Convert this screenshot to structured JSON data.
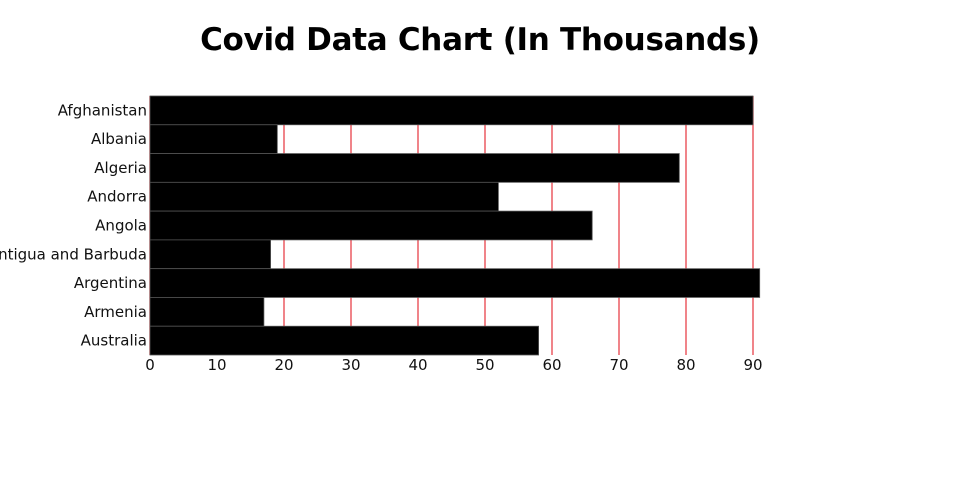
{
  "chart_data": {
    "type": "bar",
    "orientation": "horizontal",
    "title": "Covid Data Chart (In Thousands)",
    "xlabel": "",
    "ylabel": "",
    "categories": [
      "Afghanistan",
      "Albania",
      "Algeria",
      "Andorra",
      "Angola",
      "Antigua and Barbuda",
      "Argentina",
      "Armenia",
      "Australia"
    ],
    "values": [
      90,
      19,
      79,
      52,
      66,
      18,
      91,
      17,
      58
    ],
    "xlim": [
      0,
      90
    ],
    "xticks": [
      0,
      10,
      20,
      30,
      40,
      50,
      60,
      70,
      80,
      90
    ],
    "grid": "vertical",
    "legend": "none",
    "colors": {
      "bar": "#000000",
      "bar_stroke": "#555555",
      "grid": "#e8424a",
      "text": "#111111"
    }
  }
}
